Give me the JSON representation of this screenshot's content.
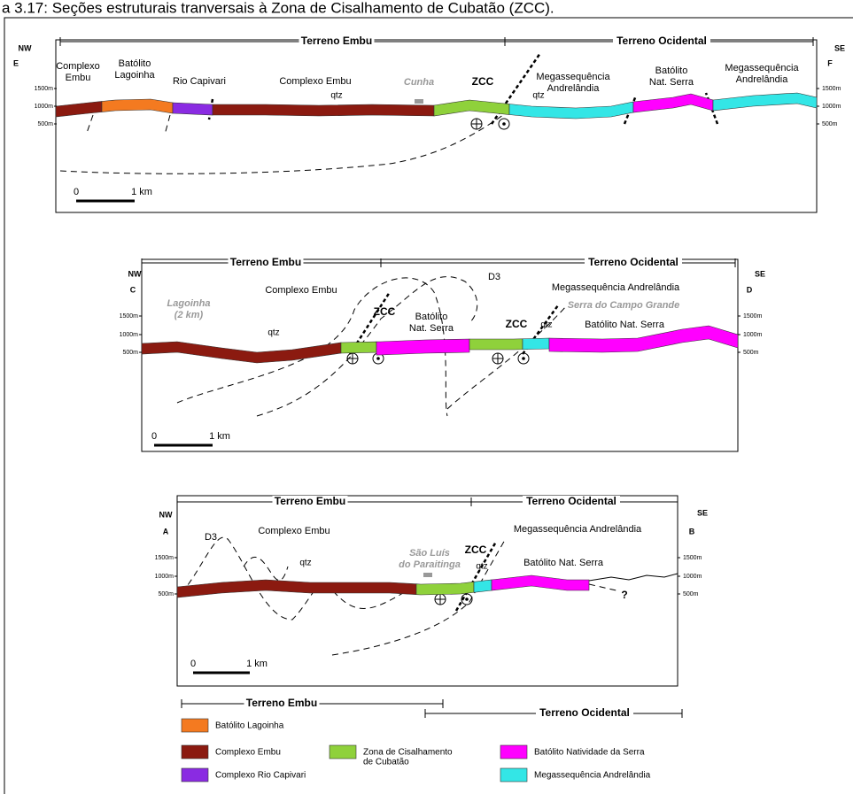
{
  "title": "a 3.17: Seções estruturais tranversais à Zona de Cisalhamento de Cubatão (ZCC).",
  "sections": [
    {
      "terrenes": [
        "Terreno Embu",
        "Terreno Ocidental"
      ],
      "directions": [
        "NW",
        "SE"
      ],
      "ends": [
        "E",
        "F"
      ],
      "elevations": [
        "1500m",
        "1000m",
        "500m"
      ],
      "labels": [
        "Complexo",
        "Embu",
        "Batólito",
        "Lagoinha",
        "Rio Capivari",
        "Complexo Embu",
        "qtz",
        "Cunha",
        "ZCC",
        "Megassequência",
        "Andrelândia",
        "qtz",
        "Batólito",
        "Nat. Serra",
        "Megassequência",
        "Andrelândia"
      ],
      "scale": [
        "0",
        "1 km"
      ]
    },
    {
      "terrenes": [
        "Terreno Embu",
        "Terreno Ocidental"
      ],
      "directions": [
        "NW",
        "SE"
      ],
      "ends": [
        "C",
        "D"
      ],
      "elevations": [
        "1500m",
        "1000m",
        "500m"
      ],
      "labels": [
        "Lagoinha",
        "(2 km)",
        "Complexo Embu",
        "D3",
        "Megassequência Andrelândia",
        "Serra do Campo Grande",
        "ZCC",
        "Batólito",
        "Nat. Serra",
        "ZCC",
        "qtz",
        "Batólito Nat. Serra",
        "qtz"
      ],
      "scale": [
        "0",
        "1 km"
      ]
    },
    {
      "terrenes": [
        "Terreno Embu",
        "Terreno Ocidental"
      ],
      "directions": [
        "NW",
        "SE"
      ],
      "ends": [
        "A",
        "B"
      ],
      "elevations": [
        "1500m",
        "1000m",
        "500m"
      ],
      "labels": [
        "D3",
        "Complexo Embu",
        "qtz",
        "São Luís",
        "do Paraitinga",
        "ZCC",
        "Megassequência Andrelândia",
        "qtz",
        "Batólito Nat. Serra",
        "?"
      ],
      "scale": [
        "0",
        "1 km"
      ]
    }
  ],
  "legend": {
    "terrenes": [
      "Terreno Embu",
      "Terreno Ocidental"
    ],
    "items": [
      {
        "lines": [
          "Batólito Lagoinha"
        ],
        "color": "#f47a20"
      },
      {
        "lines": [
          "Complexo Embu"
        ],
        "color": "#8b1a10"
      },
      {
        "lines": [
          "Complexo Rio Capivari"
        ],
        "color": "#8a2be2"
      },
      {
        "lines": [
          "Zona de Cisalhamento",
          "de Cubatão"
        ],
        "color": "#8fd13b"
      },
      {
        "lines": [
          "Batólito Natividade da Serra"
        ],
        "color": "#ff00ff"
      },
      {
        "lines": [
          "Megassequência Andrelândia"
        ],
        "color": "#33e6e6"
      }
    ]
  }
}
